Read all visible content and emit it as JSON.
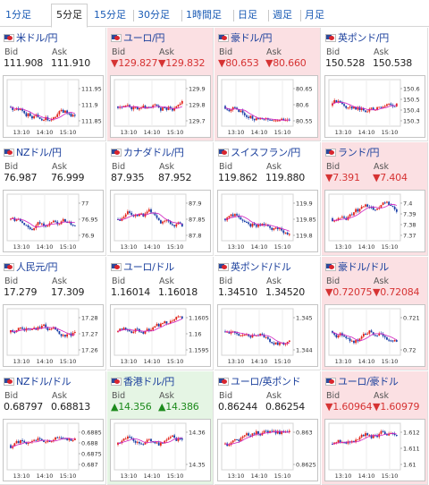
{
  "tabs": [
    {
      "label": "1分足",
      "active": false
    },
    {
      "label": "5分足",
      "active": true
    },
    {
      "label": "15分足",
      "active": false
    },
    {
      "label": "30分足",
      "active": false
    },
    {
      "label": "1時間足",
      "active": false
    },
    {
      "label": "日足",
      "active": false
    },
    {
      "label": "週足",
      "active": false
    },
    {
      "label": "月足",
      "active": false
    }
  ],
  "labels": {
    "bid": "Bid",
    "ask": "Ask"
  },
  "colors": {
    "down": "#d63333",
    "up": "#1c8a1c",
    "candle_up": "#e2231a",
    "candle_down": "#1a3fa8",
    "ma_line": "#d020c0"
  },
  "pairs": [
    {
      "name": "米ドル/円",
      "trend": "none",
      "bid": "111.908",
      "ask": "111.910",
      "chart_data": {
        "type": "candlestick",
        "x_ticks": [
          "13:10",
          "14:10",
          "15:10"
        ],
        "y_ticks": [
          "111.95",
          "111.9",
          "111.85"
        ]
      }
    },
    {
      "name": "ユーロ/円",
      "trend": "down",
      "bid": "▼129.827",
      "ask": "▼129.832",
      "chart_data": {
        "type": "candlestick",
        "x_ticks": [
          "13:10",
          "14:10",
          "15:10"
        ],
        "y_ticks": [
          "129.9",
          "129.8",
          "129.7"
        ]
      }
    },
    {
      "name": "豪ドル/円",
      "trend": "down",
      "bid": "▼80.653",
      "ask": "▼80.660",
      "chart_data": {
        "type": "candlestick",
        "x_ticks": [
          "13:10",
          "14:10",
          "15:10"
        ],
        "y_ticks": [
          "80.65",
          "80.6",
          "80.55"
        ]
      }
    },
    {
      "name": "英ポンド/円",
      "trend": "none",
      "bid": "150.528",
      "ask": "150.538",
      "chart_data": {
        "type": "candlestick",
        "x_ticks": [
          "13:10",
          "14:10",
          "15:10"
        ],
        "y_ticks": [
          "150.6",
          "150.5",
          "150.4",
          "150.3"
        ]
      }
    },
    {
      "name": "NZドル/円",
      "trend": "none",
      "bid": "76.987",
      "ask": "76.999",
      "chart_data": {
        "type": "candlestick",
        "x_ticks": [
          "13:10",
          "14:10",
          "15:10"
        ],
        "y_ticks": [
          "77",
          "76.95",
          "76.9"
        ]
      }
    },
    {
      "name": "カナダドル/円",
      "trend": "none",
      "bid": "87.935",
      "ask": "87.952",
      "chart_data": {
        "type": "candlestick",
        "x_ticks": [
          "13:10",
          "14:10",
          "15:10"
        ],
        "y_ticks": [
          "87.9",
          "87.85",
          "87.8"
        ]
      }
    },
    {
      "name": "スイスフラン/円",
      "trend": "none",
      "bid": "119.862",
      "ask": "119.880",
      "chart_data": {
        "type": "candlestick",
        "x_ticks": [
          "13:10",
          "14:10",
          "15:10"
        ],
        "y_ticks": [
          "119.9",
          "119.85",
          "119.8"
        ]
      }
    },
    {
      "name": "ランド/円",
      "trend": "down",
      "bid": "▼7.391",
      "ask": "▼7.404",
      "chart_data": {
        "type": "candlestick",
        "x_ticks": [
          "13:10",
          "14:10",
          "15:10"
        ],
        "y_ticks": [
          "7.4",
          "7.39",
          "7.38",
          "7.37"
        ]
      }
    },
    {
      "name": "人民元/円",
      "trend": "none",
      "bid": "17.279",
      "ask": "17.309",
      "chart_data": {
        "type": "candlestick",
        "x_ticks": [
          "13:10",
          "14:10",
          "15:10"
        ],
        "y_ticks": [
          "17.28",
          "17.27",
          "17.26"
        ]
      }
    },
    {
      "name": "ユーロ/ドル",
      "trend": "none",
      "bid": "1.16014",
      "ask": "1.16018",
      "chart_data": {
        "type": "candlestick",
        "x_ticks": [
          "13:10",
          "14:10",
          "15:10"
        ],
        "y_ticks": [
          "1.1605",
          "1.16",
          "1.1595"
        ]
      }
    },
    {
      "name": "英ポンド/ドル",
      "trend": "none",
      "bid": "1.34510",
      "ask": "1.34520",
      "chart_data": {
        "type": "candlestick",
        "x_ticks": [
          "13:10",
          "14:10",
          "15:10"
        ],
        "y_ticks": [
          "1.345",
          "1.344"
        ]
      }
    },
    {
      "name": "豪ドル/ドル",
      "trend": "down",
      "bid": "▼0.72075",
      "ask": "▼0.72084",
      "chart_data": {
        "type": "candlestick",
        "x_ticks": [
          "13:10",
          "14:10",
          "15:10"
        ],
        "y_ticks": [
          "0.721",
          "0.72"
        ]
      }
    },
    {
      "name": "NZドル/ドル",
      "trend": "none",
      "bid": "0.68797",
      "ask": "0.68813",
      "chart_data": {
        "type": "candlestick",
        "x_ticks": [
          "13:10",
          "14:10",
          "15:10"
        ],
        "y_ticks": [
          "0.6885",
          "0.688",
          "0.6875",
          "0.687"
        ]
      }
    },
    {
      "name": "香港ドル/円",
      "trend": "up",
      "bid": "▲14.356",
      "ask": "▲14.386",
      "chart_data": {
        "type": "candlestick",
        "x_ticks": [
          "13:10",
          "14:10",
          "15:10"
        ],
        "y_ticks": [
          "14.36",
          "14.35"
        ]
      }
    },
    {
      "name": "ユーロ/英ポンド",
      "trend": "none",
      "bid": "0.86244",
      "ask": "0.86254",
      "chart_data": {
        "type": "candlestick",
        "x_ticks": [
          "13:10",
          "14:10",
          "15:10"
        ],
        "y_ticks": [
          "0.863",
          "0.8625"
        ]
      }
    },
    {
      "name": "ユーロ/豪ドル",
      "trend": "down",
      "bid": "▼1.60964",
      "ask": "▼1.60979",
      "chart_data": {
        "type": "candlestick",
        "x_ticks": [
          "13:10",
          "14:10",
          "15:10"
        ],
        "y_ticks": [
          "1.612",
          "1.611",
          "1.61"
        ]
      }
    }
  ]
}
